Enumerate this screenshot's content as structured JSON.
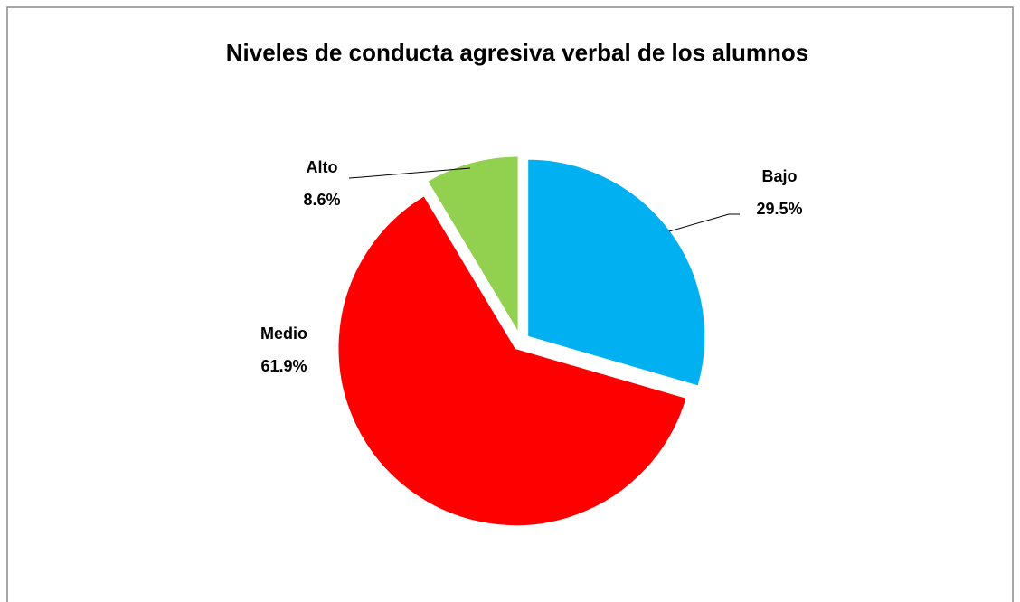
{
  "chart_data": {
    "type": "pie",
    "title": "Niveles de conducta agresiva verbal  de los alumnos",
    "categories": [
      "Bajo",
      "Medio",
      "Alto"
    ],
    "values": [
      29.5,
      61.9,
      8.6
    ],
    "value_labels": [
      "29.5%",
      "61.9%",
      "8.6%"
    ],
    "colors": [
      "#00b0f0",
      "#ff0000",
      "#92d050"
    ]
  }
}
